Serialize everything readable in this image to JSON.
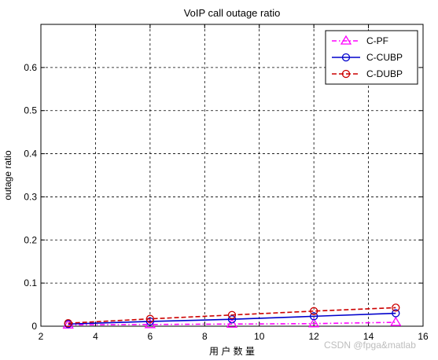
{
  "chart_data": {
    "type": "line",
    "title": "VoIP call outage ratio",
    "xlabel": "用 户 数 量",
    "ylabel": "outage ratio",
    "xlim": [
      2,
      16
    ],
    "ylim": [
      0,
      0.7
    ],
    "xticks": [
      2,
      4,
      6,
      8,
      10,
      12,
      14,
      16
    ],
    "yticks": [
      0,
      0.1,
      0.2,
      0.3,
      0.4,
      0.5,
      0.6
    ],
    "grid": true,
    "legend_position": "top-right",
    "series": [
      {
        "name": "C-PF",
        "color": "#ff00ff",
        "dash": "dash-dot",
        "marker": "triangle",
        "x": [
          3,
          6,
          9,
          12,
          15
        ],
        "y": [
          0.003,
          0.004,
          0.005,
          0.006,
          0.009
        ]
      },
      {
        "name": "C-CUBP",
        "color": "#0000cc",
        "dash": "solid",
        "marker": "circle",
        "x": [
          3,
          6,
          9,
          12,
          15
        ],
        "y": [
          0.005,
          0.011,
          0.016,
          0.023,
          0.03
        ]
      },
      {
        "name": "C-DUBP",
        "color": "#cc0000",
        "dash": "dashed",
        "marker": "circle",
        "x": [
          3,
          6,
          9,
          12,
          15
        ],
        "y": [
          0.007,
          0.017,
          0.026,
          0.035,
          0.043
        ]
      }
    ]
  },
  "watermark": "CSDN @fpga&matlab"
}
